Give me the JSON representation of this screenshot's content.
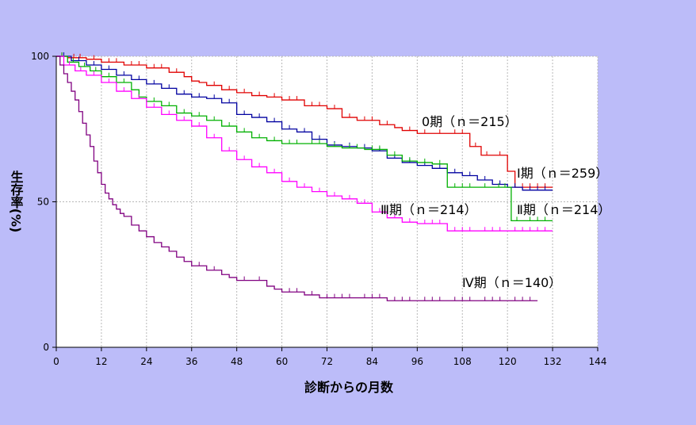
{
  "chart_data": {
    "type": "line",
    "step": true,
    "xlabel": "診断からの月数",
    "ylabel": "生存率(%)",
    "xlim": [
      0,
      144
    ],
    "ylim": [
      0,
      100
    ],
    "x_ticks": [
      0,
      12,
      24,
      36,
      48,
      60,
      72,
      84,
      96,
      108,
      120,
      132,
      144
    ],
    "y_ticks": [
      0,
      50,
      100
    ],
    "grid": true,
    "background_color": "#bcbcf9",
    "plot_background_color": "#ffffff",
    "series": [
      {
        "name": "0期 (n=215)",
        "label_text": "0期（ｎ＝215）",
        "color": "#e00000",
        "x": [
          0,
          3,
          8,
          12,
          18,
          24,
          30,
          34,
          36,
          38,
          40,
          44,
          48,
          52,
          56,
          60,
          66,
          72,
          76,
          80,
          86,
          90,
          92,
          96,
          100,
          104,
          110,
          113,
          116,
          120,
          122,
          132
        ],
        "y": [
          100,
          99.5,
          99,
          98,
          97,
          96,
          94.5,
          93,
          91.5,
          91,
          90,
          88.5,
          87.5,
          86.5,
          86,
          85,
          83,
          82,
          79,
          78,
          76.5,
          75.5,
          74.5,
          73.5,
          73.5,
          73.5,
          69,
          66,
          66,
          60.5,
          55,
          55
        ]
      },
      {
        "name": "I期 (n=259)",
        "label_text": "Ⅰ期（ｎ＝259）",
        "color": "#0000a0",
        "x": [
          0,
          4,
          8,
          12,
          16,
          20,
          24,
          28,
          32,
          36,
          40,
          44,
          48,
          52,
          56,
          60,
          64,
          68,
          72,
          76,
          80,
          84,
          88,
          92,
          96,
          100,
          104,
          108,
          112,
          116,
          120,
          124,
          132
        ],
        "y": [
          100,
          98.5,
          97,
          95.5,
          93.5,
          92,
          90.5,
          89,
          87,
          86,
          85.5,
          84,
          80,
          79,
          77.5,
          75,
          74,
          71.5,
          69.5,
          69,
          68.5,
          67.5,
          65,
          63.5,
          62.5,
          61.5,
          60,
          59,
          57.5,
          56,
          55,
          54,
          54
        ]
      },
      {
        "name": "II期 (n=214)",
        "label_text": "Ⅱ期（ｎ＝214）",
        "color": "#00b000",
        "x": [
          0,
          3,
          6,
          9,
          12,
          16,
          20,
          22,
          24,
          28,
          32,
          36,
          40,
          44,
          48,
          52,
          56,
          60,
          66,
          72,
          76,
          82,
          88,
          92,
          96,
          100,
          104,
          112,
          116,
          121,
          124,
          132
        ],
        "y": [
          100,
          98,
          96.5,
          95,
          93,
          91,
          88.5,
          86,
          84.5,
          83,
          80.5,
          79.5,
          78,
          76,
          74,
          72,
          71,
          70,
          70,
          69,
          68.5,
          68,
          66,
          64,
          63.5,
          63,
          55,
          55,
          55,
          43.5,
          43.5,
          43.5
        ]
      },
      {
        "name": "III期 (n=214)",
        "label_text": "Ⅲ期（ｎ＝214）",
        "color": "#ff00ff",
        "x": [
          0,
          2,
          5,
          8,
          12,
          16,
          20,
          24,
          28,
          32,
          36,
          40,
          44,
          48,
          52,
          56,
          60,
          64,
          68,
          72,
          76,
          80,
          84,
          88,
          92,
          96,
          104,
          112,
          120,
          132
        ],
        "y": [
          100,
          97,
          95,
          93.5,
          91,
          88,
          85.5,
          82.5,
          80,
          78,
          76,
          72,
          67.5,
          64.5,
          62,
          60,
          57,
          55,
          53.5,
          52,
          51,
          49.5,
          46.5,
          44.5,
          43,
          42.5,
          40,
          40,
          40,
          40
        ]
      },
      {
        "name": "IV期 (n=140)",
        "label_text": "Ⅳ期（ｎ＝140）",
        "color": "#800080",
        "x": [
          0,
          1,
          2,
          3,
          4,
          5,
          6,
          7,
          8,
          9,
          10,
          11,
          12,
          13,
          14,
          15,
          16,
          17,
          18,
          20,
          22,
          24,
          26,
          28,
          30,
          32,
          34,
          36,
          40,
          44,
          46,
          48,
          52,
          56,
          58,
          60,
          66,
          70,
          80,
          88,
          96,
          104,
          112,
          120,
          128
        ],
        "y": [
          100,
          97,
          94,
          91,
          88,
          85,
          81,
          77,
          73,
          69,
          64,
          60,
          56,
          53,
          51,
          49,
          47.5,
          46,
          45,
          42,
          40,
          38,
          36,
          34.5,
          33,
          31,
          29.5,
          28,
          26.5,
          25,
          24,
          23,
          23,
          21,
          20,
          19,
          18,
          17,
          17,
          16,
          16,
          16,
          16,
          16,
          16
        ]
      }
    ]
  }
}
